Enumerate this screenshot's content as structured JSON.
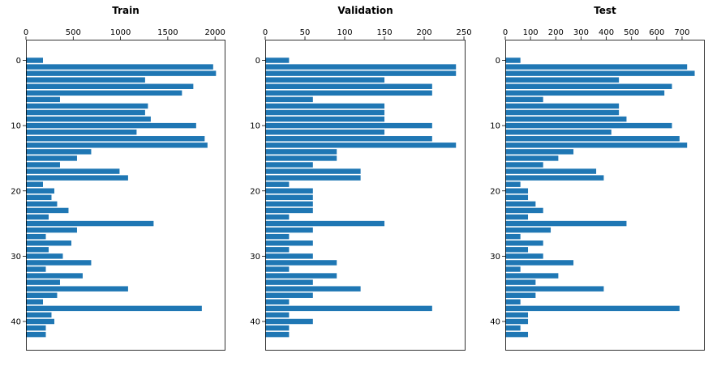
{
  "colors": {
    "bar": "#1f77b4",
    "axis": "#000000",
    "background": "#ffffff"
  },
  "chart_data": [
    {
      "type": "bar",
      "orientation": "horizontal",
      "title": "Train",
      "x_axis_position": "top",
      "y_inverted": true,
      "xlim": [
        0,
        2110
      ],
      "x_ticks": [
        0,
        500,
        1000,
        1500,
        2000
      ],
      "x_tick_labels": [
        "0",
        "500",
        "1000",
        "1500",
        "2000"
      ],
      "y_ticks": [
        0,
        10,
        20,
        30,
        40
      ],
      "y_tick_labels": [
        "0",
        "10",
        "20",
        "30",
        "40"
      ],
      "categories": [
        0,
        1,
        2,
        3,
        4,
        5,
        6,
        7,
        8,
        9,
        10,
        11,
        12,
        13,
        14,
        15,
        16,
        17,
        18,
        19,
        20,
        21,
        22,
        23,
        24,
        25,
        26,
        27,
        28,
        29,
        30,
        31,
        32,
        33,
        34,
        35,
        36,
        37,
        38,
        39,
        40,
        41,
        42
      ],
      "values": [
        180,
        1980,
        2010,
        1260,
        1770,
        1650,
        360,
        1290,
        1260,
        1320,
        1800,
        1170,
        1890,
        1920,
        690,
        540,
        360,
        990,
        1080,
        180,
        300,
        270,
        330,
        450,
        240,
        1350,
        540,
        210,
        480,
        240,
        390,
        690,
        210,
        600,
        360,
        1080,
        330,
        180,
        1860,
        270,
        300,
        210,
        210
      ]
    },
    {
      "type": "bar",
      "orientation": "horizontal",
      "title": "Validation",
      "x_axis_position": "top",
      "y_inverted": true,
      "xlim": [
        0,
        252
      ],
      "x_ticks": [
        0,
        50,
        100,
        150,
        200,
        250
      ],
      "x_tick_labels": [
        "0",
        "50",
        "100",
        "150",
        "200",
        "250"
      ],
      "y_ticks": [
        0,
        10,
        20,
        30,
        40
      ],
      "y_tick_labels": [
        "0",
        "10",
        "20",
        "30",
        "40"
      ],
      "categories": [
        0,
        1,
        2,
        3,
        4,
        5,
        6,
        7,
        8,
        9,
        10,
        11,
        12,
        13,
        14,
        15,
        16,
        17,
        18,
        19,
        20,
        21,
        22,
        23,
        24,
        25,
        26,
        27,
        28,
        29,
        30,
        31,
        32,
        33,
        34,
        35,
        36,
        37,
        38,
        39,
        40,
        41,
        42
      ],
      "values": [
        30,
        240,
        240,
        150,
        210,
        210,
        60,
        150,
        150,
        150,
        210,
        150,
        210,
        240,
        90,
        90,
        60,
        120,
        120,
        30,
        60,
        60,
        60,
        60,
        30,
        150,
        60,
        30,
        60,
        30,
        60,
        90,
        30,
        90,
        60,
        120,
        60,
        30,
        210,
        30,
        60,
        30,
        30
      ]
    },
    {
      "type": "bar",
      "orientation": "horizontal",
      "title": "Test",
      "x_axis_position": "top",
      "y_inverted": true,
      "xlim": [
        0,
        790
      ],
      "x_ticks": [
        0,
        100,
        200,
        300,
        400,
        500,
        600,
        700
      ],
      "x_tick_labels": [
        "0",
        "100",
        "200",
        "300",
        "400",
        "500",
        "600",
        "700"
      ],
      "y_ticks": [
        0,
        10,
        20,
        30,
        40
      ],
      "y_tick_labels": [
        "0",
        "10",
        "20",
        "30",
        "40"
      ],
      "categories": [
        0,
        1,
        2,
        3,
        4,
        5,
        6,
        7,
        8,
        9,
        10,
        11,
        12,
        13,
        14,
        15,
        16,
        17,
        18,
        19,
        20,
        21,
        22,
        23,
        24,
        25,
        26,
        27,
        28,
        29,
        30,
        31,
        32,
        33,
        34,
        35,
        36,
        37,
        38,
        39,
        40,
        41,
        42
      ],
      "values": [
        60,
        720,
        750,
        450,
        660,
        630,
        150,
        450,
        450,
        480,
        660,
        420,
        690,
        720,
        270,
        210,
        150,
        360,
        390,
        60,
        90,
        90,
        120,
        150,
        90,
        480,
        180,
        60,
        150,
        90,
        150,
        270,
        60,
        210,
        120,
        390,
        120,
        60,
        690,
        90,
        90,
        60,
        90
      ]
    }
  ]
}
